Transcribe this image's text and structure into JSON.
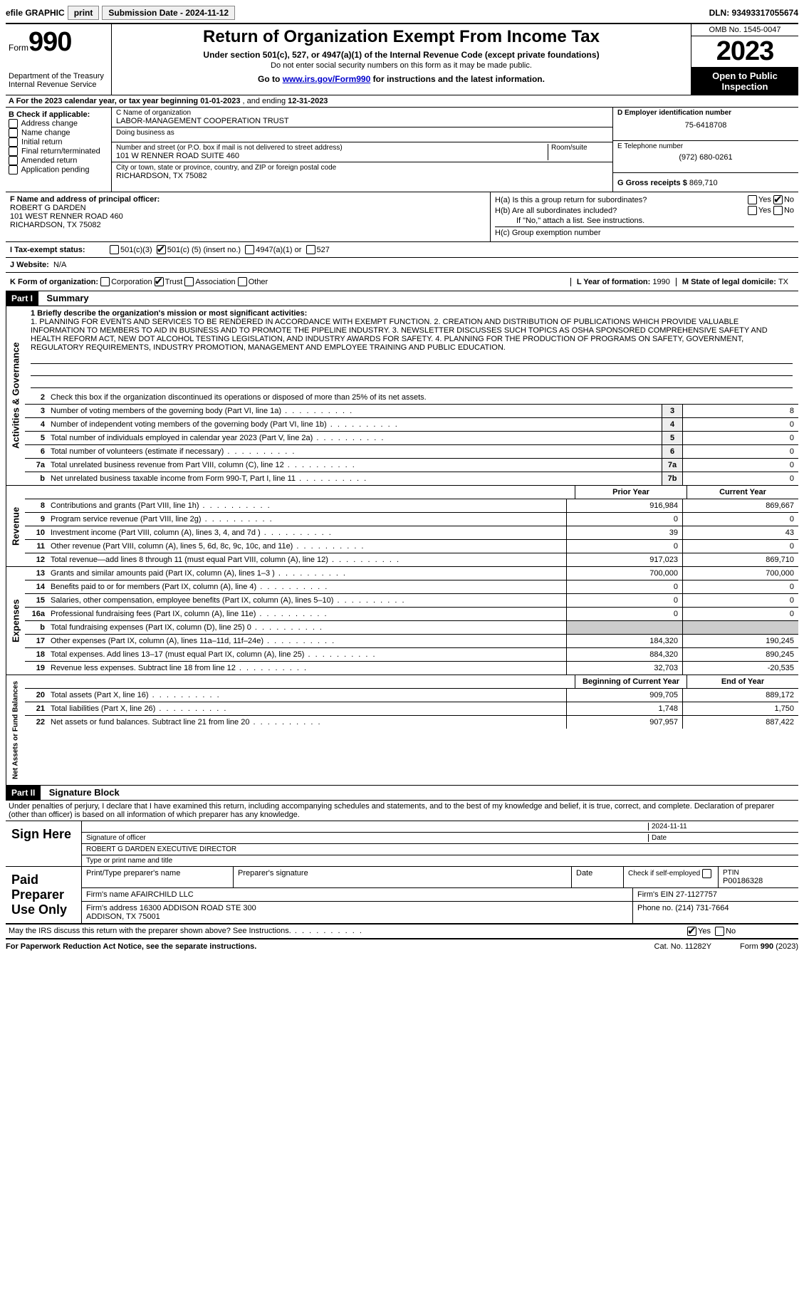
{
  "topbar": {
    "efile": "efile GRAPHIC",
    "print": "print",
    "sub_label": "Submission Date - 2024-11-12",
    "dln": "DLN: 93493317055674"
  },
  "header": {
    "form_word": "Form",
    "form_num": "990",
    "dept": "Department of the Treasury\nInternal Revenue Service",
    "title": "Return of Organization Exempt From Income Tax",
    "sub1": "Under section 501(c), 527, or 4947(a)(1) of the Internal Revenue Code (except private foundations)",
    "sub2": "Do not enter social security numbers on this form as it may be made public.",
    "sub3_pre": "Go to ",
    "sub3_link": "www.irs.gov/Form990",
    "sub3_post": " for instructions and the latest information.",
    "omb": "OMB No. 1545-0047",
    "year": "2023",
    "inspection": "Open to Public Inspection"
  },
  "row_a": {
    "prefix": "A For the 2023 calendar year, or tax year beginning ",
    "begin": "01-01-2023",
    "mid": " , and ending ",
    "end": "12-31-2023"
  },
  "col_b": {
    "header": "B Check if applicable:",
    "items": [
      "Address change",
      "Name change",
      "Initial return",
      "Final return/terminated",
      "Amended return",
      "Application pending"
    ]
  },
  "col_c": {
    "name_label": "C Name of organization",
    "name": "LABOR-MANAGEMENT COOPERATION TRUST",
    "dba_label": "Doing business as",
    "dba": "",
    "street_label": "Number and street (or P.O. box if mail is not delivered to street address)",
    "room_label": "Room/suite",
    "street": "101 W RENNER ROAD SUITE 460",
    "city_label": "City or town, state or province, country, and ZIP or foreign postal code",
    "city": "RICHARDSON, TX  75082"
  },
  "col_de": {
    "d_label": "D Employer identification number",
    "d_val": "75-6418708",
    "e_label": "E Telephone number",
    "e_val": "(972) 680-0261",
    "g_label": "G Gross receipts $ ",
    "g_val": "869,710"
  },
  "col_f": {
    "label": "F  Name and address of principal officer:",
    "name": "ROBERT G DARDEN",
    "addr1": "101 WEST RENNER ROAD 460",
    "addr2": "RICHARDSON, TX  75082"
  },
  "col_h": {
    "ha": "H(a)  Is this a group return for subordinates?",
    "hb": "H(b)  Are all subordinates included?",
    "hb_note": "If \"No,\" attach a list. See instructions.",
    "hc": "H(c)  Group exemption number  ",
    "yes": "Yes",
    "no": "No"
  },
  "row_i": {
    "label": "I  Tax-exempt status:",
    "o1": "501(c)(3)",
    "o2_pre": "501(c) (",
    "o2_num": "5",
    "o2_post": ") (insert no.)",
    "o3": "4947(a)(1) or",
    "o4": "527"
  },
  "row_j": {
    "label": "J  Website: ",
    "val": "N/A"
  },
  "row_k": {
    "label": "K Form of organization:",
    "opts": [
      "Corporation",
      "Trust",
      "Association",
      "Other"
    ],
    "l_label": "L Year of formation: ",
    "l_val": "1990",
    "m_label": "M State of legal domicile: ",
    "m_val": "TX"
  },
  "part1": {
    "header": "Part I",
    "title": "Summary",
    "vert_ag": "Activities & Governance",
    "vert_rev": "Revenue",
    "vert_exp": "Expenses",
    "vert_net": "Net Assets or Fund Balances",
    "l1_label": "1  Briefly describe the organization's mission or most significant activities:",
    "l1_text": "1. PLANNING FOR EVENTS AND SERVICES TO BE RENDERED IN ACCORDANCE WITH EXEMPT FUNCTION. 2. CREATION AND DISTRIBUTION OF PUBLICATIONS WHICH PROVIDE VALUABLE INFORMATION TO MEMBERS TO AID IN BUSINESS AND TO PROMOTE THE PIPELINE INDUSTRY. 3. NEWSLETTER DISCUSSES SUCH TOPICS AS OSHA SPONSORED COMPREHENSIVE SAFETY AND HEALTH REFORM ACT, NEW DOT ALCOHOL TESTING LEGISLATION, AND INDUSTRY AWARDS FOR SAFETY. 4. PLANNING FOR THE PRODUCTION OF PROGRAMS ON SAFETY, GOVERNMENT, REGULATORY REQUIREMENTS, INDUSTRY PROMOTION, MANAGEMENT AND EMPLOYEE TRAINING AND PUBLIC EDUCATION.",
    "l2": "Check this box       if the organization discontinued its operations or disposed of more than 25% of its net assets.",
    "lines_ag": [
      {
        "n": "3",
        "t": "Number of voting members of the governing body (Part VI, line 1a)",
        "b": "3",
        "v": "8"
      },
      {
        "n": "4",
        "t": "Number of independent voting members of the governing body (Part VI, line 1b)",
        "b": "4",
        "v": "0"
      },
      {
        "n": "5",
        "t": "Total number of individuals employed in calendar year 2023 (Part V, line 2a)",
        "b": "5",
        "v": "0"
      },
      {
        "n": "6",
        "t": "Total number of volunteers (estimate if necessary)",
        "b": "6",
        "v": "0"
      },
      {
        "n": "7a",
        "t": "Total unrelated business revenue from Part VIII, column (C), line 12",
        "b": "7a",
        "v": "0"
      },
      {
        "n": "b",
        "t": "Net unrelated business taxable income from Form 990-T, Part I, line 11",
        "b": "7b",
        "v": "0"
      }
    ],
    "col_prior": "Prior Year",
    "col_current": "Current Year",
    "lines_rev": [
      {
        "n": "8",
        "t": "Contributions and grants (Part VIII, line 1h)",
        "p": "916,984",
        "c": "869,667"
      },
      {
        "n": "9",
        "t": "Program service revenue (Part VIII, line 2g)",
        "p": "0",
        "c": "0"
      },
      {
        "n": "10",
        "t": "Investment income (Part VIII, column (A), lines 3, 4, and 7d )",
        "p": "39",
        "c": "43"
      },
      {
        "n": "11",
        "t": "Other revenue (Part VIII, column (A), lines 5, 6d, 8c, 9c, 10c, and 11e)",
        "p": "0",
        "c": "0"
      },
      {
        "n": "12",
        "t": "Total revenue—add lines 8 through 11 (must equal Part VIII, column (A), line 12)",
        "p": "917,023",
        "c": "869,710"
      }
    ],
    "lines_exp": [
      {
        "n": "13",
        "t": "Grants and similar amounts paid (Part IX, column (A), lines 1–3 )",
        "p": "700,000",
        "c": "700,000"
      },
      {
        "n": "14",
        "t": "Benefits paid to or for members (Part IX, column (A), line 4)",
        "p": "0",
        "c": "0"
      },
      {
        "n": "15",
        "t": "Salaries, other compensation, employee benefits (Part IX, column (A), lines 5–10)",
        "p": "0",
        "c": "0"
      },
      {
        "n": "16a",
        "t": "Professional fundraising fees (Part IX, column (A), line 11e)",
        "p": "0",
        "c": "0"
      },
      {
        "n": "b",
        "t": "Total fundraising expenses (Part IX, column (D), line 25) 0",
        "p": "",
        "c": "",
        "shaded": true
      },
      {
        "n": "17",
        "t": "Other expenses (Part IX, column (A), lines 11a–11d, 11f–24e)",
        "p": "184,320",
        "c": "190,245"
      },
      {
        "n": "18",
        "t": "Total expenses. Add lines 13–17 (must equal Part IX, column (A), line 25)",
        "p": "884,320",
        "c": "890,245"
      },
      {
        "n": "19",
        "t": "Revenue less expenses. Subtract line 18 from line 12",
        "p": "32,703",
        "c": "-20,535"
      }
    ],
    "col_begin": "Beginning of Current Year",
    "col_end": "End of Year",
    "lines_net": [
      {
        "n": "20",
        "t": "Total assets (Part X, line 16)",
        "p": "909,705",
        "c": "889,172"
      },
      {
        "n": "21",
        "t": "Total liabilities (Part X, line 26)",
        "p": "1,748",
        "c": "1,750"
      },
      {
        "n": "22",
        "t": "Net assets or fund balances. Subtract line 21 from line 20",
        "p": "907,957",
        "c": "887,422"
      }
    ]
  },
  "part2": {
    "header": "Part II",
    "title": "Signature Block",
    "declaration": "Under penalties of perjury, I declare that I have examined this return, including accompanying schedules and statements, and to the best of my knowledge and belief, it is true, correct, and complete. Declaration of preparer (other than officer) is based on all information of which preparer has any knowledge.",
    "sign_here": "Sign Here",
    "sig_date": "2024-11-11",
    "sig_officer_label": "Signature of officer",
    "sig_date_label": "Date",
    "officer_name": "ROBERT G DARDEN  EXECUTIVE DIRECTOR",
    "officer_name_label": "Type or print name and title",
    "paid": "Paid Preparer Use Only",
    "prep_name_label": "Print/Type preparer's name",
    "prep_sig_label": "Preparer's signature",
    "date_label": "Date",
    "self_emp": "Check         if self-employed",
    "ptin_label": "PTIN",
    "ptin": "P00186328",
    "firm_name_label": "Firm's name   ",
    "firm_name": "AFAIRCHILD LLC",
    "firm_ein_label": "Firm's EIN  ",
    "firm_ein": "27-1127757",
    "firm_addr_label": "Firm's address ",
    "firm_addr": "16300 ADDISON ROAD STE 300\nADDISON, TX  75001",
    "phone_label": "Phone no. ",
    "phone": "(214) 731-7664",
    "discuss": "May the IRS discuss this return with the preparer shown above? See Instructions."
  },
  "footer": {
    "left": "For Paperwork Reduction Act Notice, see the separate instructions.",
    "center": "Cat. No. 11282Y",
    "right": "Form 990 (2023)"
  }
}
